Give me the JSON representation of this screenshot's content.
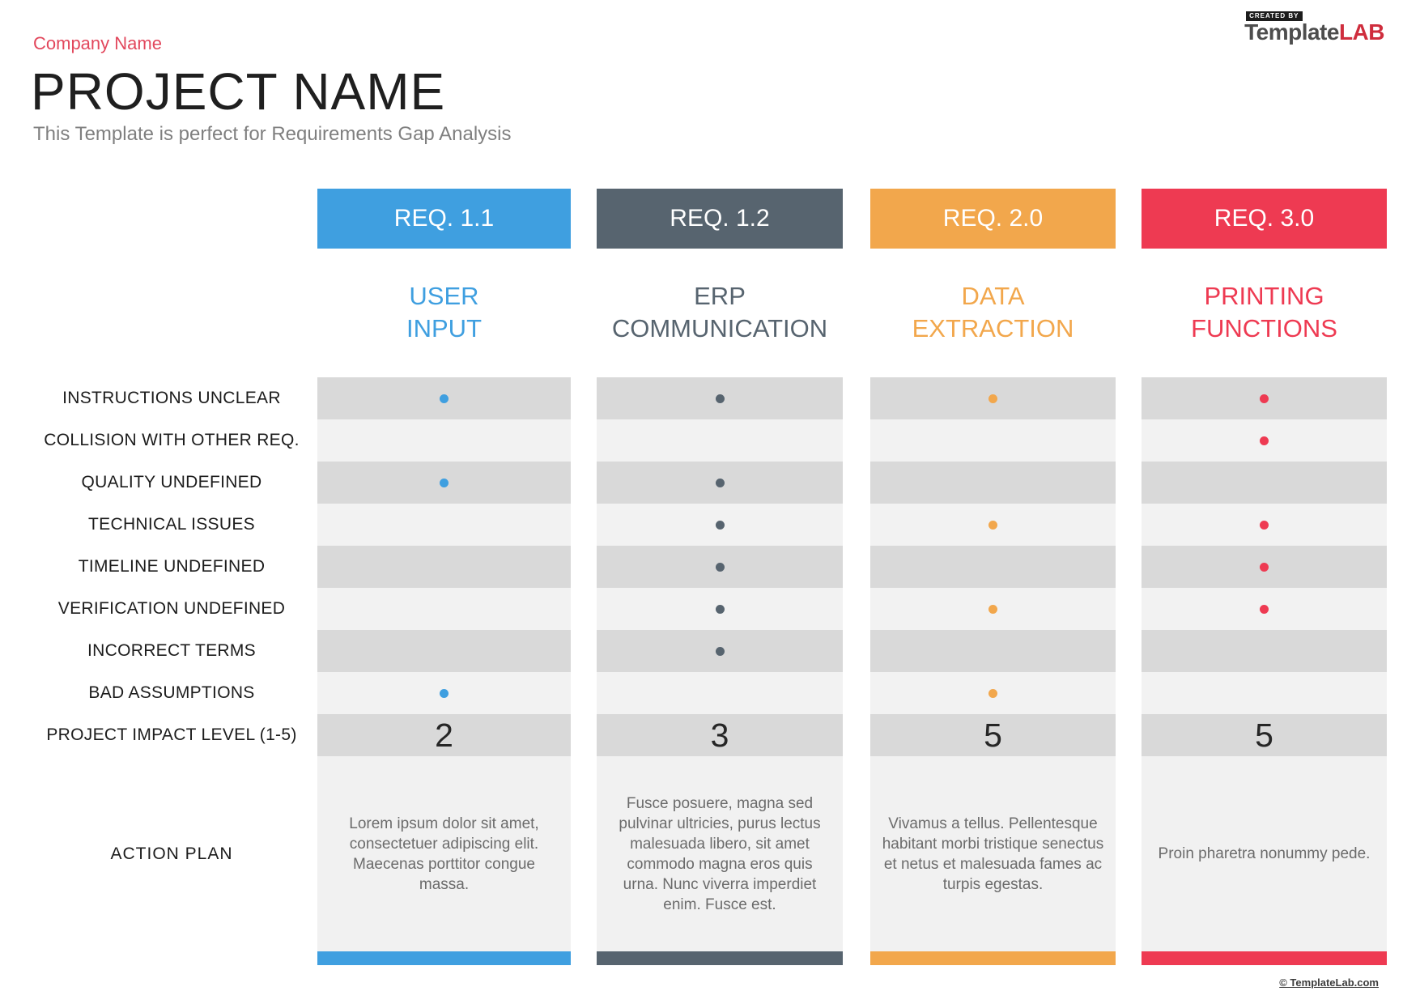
{
  "brand": {
    "created_by": "CREATED BY",
    "logo_template": "Template",
    "logo_lab": "LAB",
    "logo_lab_color": "#cf2d3d"
  },
  "header": {
    "company_name": "Company Name",
    "company_color": "#e2475c",
    "project_name": "PROJECT NAME",
    "subtitle": "This Template is perfect for Requirements Gap Analysis"
  },
  "theme": {
    "stripe_dark": "#d9d9d9",
    "stripe_light": "#f2f2f2",
    "action_block": "#f1f1f1"
  },
  "table": {
    "row_labels": [
      "INSTRUCTIONS UNCLEAR",
      "COLLISION WITH OTHER REQ.",
      "QUALITY UNDEFINED",
      "TECHNICAL ISSUES",
      "TIMELINE UNDEFINED",
      "VERIFICATION UNDEFINED",
      "INCORRECT TERMS",
      "BAD ASSUMPTIONS"
    ],
    "impact_label": "PROJECT IMPACT LEVEL (1-5)",
    "action_label": "ACTION PLAN",
    "columns": [
      {
        "req": "REQ. 1.1",
        "name_line1": "USER",
        "name_line2": "INPUT",
        "color": "#3f9fe0",
        "dots": [
          true,
          false,
          true,
          false,
          false,
          false,
          false,
          true
        ],
        "impact": "2",
        "action": "Lorem ipsum dolor sit amet, consectetuer adipiscing elit. Maecenas porttitor congue massa."
      },
      {
        "req": "REQ. 1.2",
        "name_line1": "ERP",
        "name_line2": "COMMUNICATION",
        "color": "#57646f",
        "dots": [
          true,
          false,
          true,
          true,
          true,
          true,
          true,
          false
        ],
        "impact": "3",
        "action": "Fusce posuere, magna sed pulvinar ultricies, purus lectus malesuada libero, sit amet commodo magna eros quis urna. Nunc viverra imperdiet enim. Fusce est."
      },
      {
        "req": "REQ. 2.0",
        "name_line1": "DATA",
        "name_line2": "EXTRACTION",
        "color": "#f2a74c",
        "dots": [
          true,
          false,
          false,
          true,
          false,
          true,
          false,
          true
        ],
        "impact": "5",
        "action": "Vivamus a tellus. Pellentesque habitant morbi tristique senectus et netus et malesuada fames ac turpis egestas."
      },
      {
        "req": "REQ. 3.0",
        "name_line1": "PRINTING",
        "name_line2": "FUNCTIONS",
        "color": "#ee3a52",
        "dots": [
          true,
          true,
          false,
          true,
          true,
          true,
          false,
          false
        ],
        "impact": "5",
        "action": "Proin pharetra nonummy pede."
      }
    ]
  },
  "footer": {
    "copyright": "© TemplateLab.com"
  }
}
